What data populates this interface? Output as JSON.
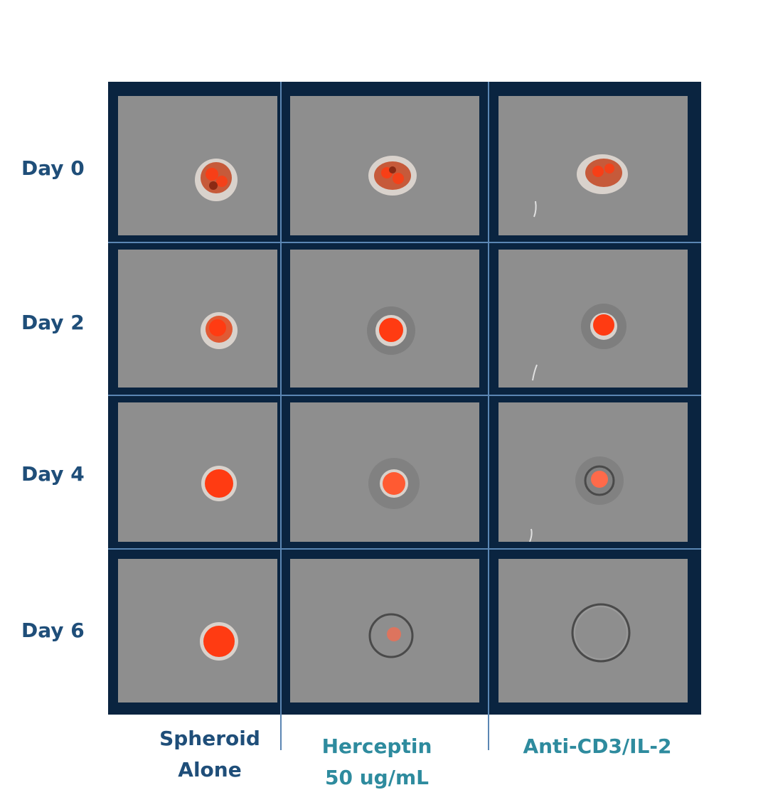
{
  "rows": [
    {
      "label": "Day 0"
    },
    {
      "label": "Day 2"
    },
    {
      "label": "Day 4"
    },
    {
      "label": "Day 6"
    }
  ],
  "columns": [
    {
      "line1": "Spheroid",
      "line2": "Alone",
      "color": "#1f4e79"
    },
    {
      "line1": "Herceptin",
      "line2": "50 ug/mL",
      "color": "#2e8b9e"
    },
    {
      "line1": "Anti-CD3/IL-2",
      "line2": "",
      "color": "#2e8b9e"
    }
  ],
  "colors": {
    "frame": "#0a2440",
    "divider": "#5b86b3",
    "cell_background": "#8e8e8e",
    "spheroid_red": "#ff3b12",
    "row_label": "#1f4e79"
  }
}
